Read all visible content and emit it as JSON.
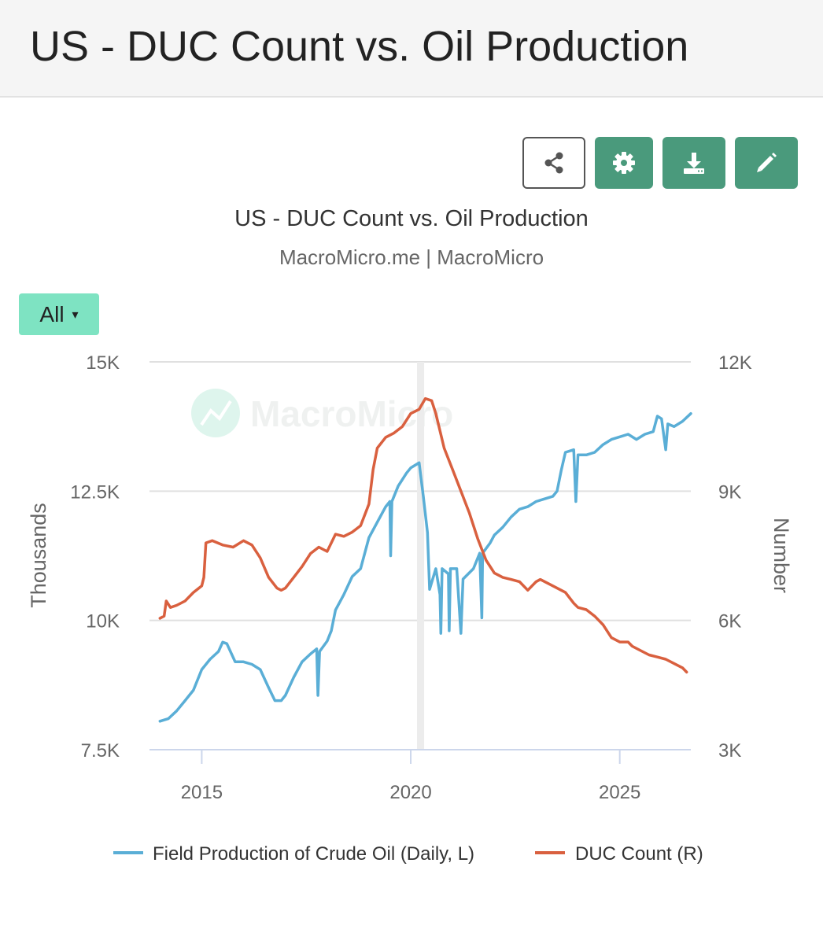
{
  "header": {
    "title": "US - DUC Count vs. Oil Production"
  },
  "toolbar": {
    "share_icon": "share-icon",
    "settings_icon": "gear-icon",
    "download_icon": "download-icon",
    "edit_icon": "pencil-icon"
  },
  "range_selector": {
    "label": "All",
    "caret": "▾"
  },
  "colors": {
    "oil": "#5aaed6",
    "duc": "#d9603f",
    "accent": "#4a9a7c",
    "range": "#7ee3c2"
  },
  "chart_data": {
    "type": "line",
    "title": "US - DUC Count vs. Oil Production",
    "subtitle": "MacroMicro.me | MacroMicro",
    "watermark": "MacroMicro",
    "ylabel_left": "Thousands",
    "ylabel_right": "Number",
    "xlim": [
      2013.75,
      2026.7
    ],
    "ylim_left": [
      7500,
      15000
    ],
    "ylim_right": [
      3000,
      12000
    ],
    "y_ticks_left": [
      {
        "value": 7500,
        "label": "7.5K"
      },
      {
        "value": 10000,
        "label": "10K"
      },
      {
        "value": 12500,
        "label": "12.5K"
      },
      {
        "value": 15000,
        "label": "15K"
      }
    ],
    "y_ticks_right": [
      {
        "value": 3000,
        "label": "3K"
      },
      {
        "value": 6000,
        "label": "6K"
      },
      {
        "value": 9000,
        "label": "9K"
      },
      {
        "value": 12000,
        "label": "12K"
      }
    ],
    "x_ticks": [
      {
        "value": 2015,
        "label": "2015"
      },
      {
        "value": 2020,
        "label": "2020"
      },
      {
        "value": 2025,
        "label": "2025"
      }
    ],
    "shaded_band": [
      2020.15,
      2020.32
    ],
    "grid": true,
    "legend_position": "bottom",
    "series": [
      {
        "name": "Field Production of Crude Oil (Daily, L)",
        "axis": "left",
        "color": "#5aaed6",
        "points": [
          [
            2014.0,
            8050
          ],
          [
            2014.2,
            8100
          ],
          [
            2014.4,
            8250
          ],
          [
            2014.6,
            8450
          ],
          [
            2014.8,
            8650
          ],
          [
            2015.0,
            9050
          ],
          [
            2015.2,
            9250
          ],
          [
            2015.4,
            9400
          ],
          [
            2015.5,
            9580
          ],
          [
            2015.6,
            9550
          ],
          [
            2015.8,
            9200
          ],
          [
            2016.0,
            9200
          ],
          [
            2016.2,
            9150
          ],
          [
            2016.4,
            9050
          ],
          [
            2016.6,
            8700
          ],
          [
            2016.75,
            8450
          ],
          [
            2016.9,
            8450
          ],
          [
            2017.0,
            8550
          ],
          [
            2017.2,
            8900
          ],
          [
            2017.4,
            9200
          ],
          [
            2017.6,
            9350
          ],
          [
            2017.75,
            9450
          ],
          [
            2017.78,
            8550
          ],
          [
            2017.82,
            9400
          ],
          [
            2018.0,
            9600
          ],
          [
            2018.1,
            9800
          ],
          [
            2018.2,
            10200
          ],
          [
            2018.4,
            10500
          ],
          [
            2018.6,
            10850
          ],
          [
            2018.8,
            11000
          ],
          [
            2019.0,
            11600
          ],
          [
            2019.2,
            11900
          ],
          [
            2019.4,
            12200
          ],
          [
            2019.5,
            12300
          ],
          [
            2019.52,
            11250
          ],
          [
            2019.55,
            12300
          ],
          [
            2019.7,
            12600
          ],
          [
            2019.9,
            12850
          ],
          [
            2020.0,
            12950
          ],
          [
            2020.2,
            13050
          ],
          [
            2020.3,
            12400
          ],
          [
            2020.4,
            11700
          ],
          [
            2020.45,
            10600
          ],
          [
            2020.6,
            11000
          ],
          [
            2020.7,
            10500
          ],
          [
            2020.72,
            9750
          ],
          [
            2020.75,
            11000
          ],
          [
            2020.9,
            10900
          ],
          [
            2020.92,
            9800
          ],
          [
            2020.95,
            11000
          ],
          [
            2021.1,
            11000
          ],
          [
            2021.2,
            9750
          ],
          [
            2021.25,
            10800
          ],
          [
            2021.5,
            11000
          ],
          [
            2021.65,
            11300
          ],
          [
            2021.7,
            10050
          ],
          [
            2021.72,
            11300
          ],
          [
            2021.9,
            11500
          ],
          [
            2022.0,
            11650
          ],
          [
            2022.2,
            11800
          ],
          [
            2022.4,
            12000
          ],
          [
            2022.6,
            12150
          ],
          [
            2022.8,
            12200
          ],
          [
            2023.0,
            12300
          ],
          [
            2023.2,
            12350
          ],
          [
            2023.4,
            12400
          ],
          [
            2023.5,
            12500
          ],
          [
            2023.6,
            12900
          ],
          [
            2023.7,
            13250
          ],
          [
            2023.9,
            13300
          ],
          [
            2023.95,
            12300
          ],
          [
            2024.0,
            13200
          ],
          [
            2024.2,
            13200
          ],
          [
            2024.4,
            13250
          ],
          [
            2024.6,
            13400
          ],
          [
            2024.8,
            13500
          ],
          [
            2025.0,
            13550
          ],
          [
            2025.2,
            13600
          ],
          [
            2025.4,
            13500
          ],
          [
            2025.6,
            13600
          ],
          [
            2025.8,
            13650
          ],
          [
            2025.9,
            13950
          ],
          [
            2026.0,
            13900
          ],
          [
            2026.1,
            13300
          ],
          [
            2026.15,
            13800
          ],
          [
            2026.3,
            13750
          ],
          [
            2026.5,
            13850
          ],
          [
            2026.7,
            14000
          ]
        ]
      },
      {
        "name": "DUC Count (R)",
        "axis": "right",
        "color": "#d9603f",
        "points": [
          [
            2014.0,
            6050
          ],
          [
            2014.1,
            6100
          ],
          [
            2014.15,
            6450
          ],
          [
            2014.25,
            6300
          ],
          [
            2014.4,
            6350
          ],
          [
            2014.6,
            6450
          ],
          [
            2014.8,
            6650
          ],
          [
            2015.0,
            6800
          ],
          [
            2015.05,
            7000
          ],
          [
            2015.1,
            7800
          ],
          [
            2015.25,
            7850
          ],
          [
            2015.5,
            7750
          ],
          [
            2015.75,
            7700
          ],
          [
            2016.0,
            7850
          ],
          [
            2016.2,
            7750
          ],
          [
            2016.4,
            7450
          ],
          [
            2016.6,
            7000
          ],
          [
            2016.8,
            6750
          ],
          [
            2016.9,
            6700
          ],
          [
            2017.0,
            6750
          ],
          [
            2017.2,
            7000
          ],
          [
            2017.4,
            7250
          ],
          [
            2017.6,
            7550
          ],
          [
            2017.8,
            7700
          ],
          [
            2018.0,
            7600
          ],
          [
            2018.2,
            8000
          ],
          [
            2018.4,
            7950
          ],
          [
            2018.6,
            8050
          ],
          [
            2018.8,
            8200
          ],
          [
            2019.0,
            8700
          ],
          [
            2019.1,
            9500
          ],
          [
            2019.2,
            10000
          ],
          [
            2019.4,
            10250
          ],
          [
            2019.6,
            10350
          ],
          [
            2019.8,
            10500
          ],
          [
            2020.0,
            10800
          ],
          [
            2020.2,
            10900
          ],
          [
            2020.35,
            11150
          ],
          [
            2020.5,
            11100
          ],
          [
            2020.6,
            10800
          ],
          [
            2020.8,
            10000
          ],
          [
            2021.0,
            9500
          ],
          [
            2021.2,
            9000
          ],
          [
            2021.4,
            8500
          ],
          [
            2021.6,
            7900
          ],
          [
            2021.8,
            7400
          ],
          [
            2022.0,
            7100
          ],
          [
            2022.2,
            7000
          ],
          [
            2022.4,
            6950
          ],
          [
            2022.6,
            6900
          ],
          [
            2022.8,
            6700
          ],
          [
            2022.9,
            6800
          ],
          [
            2023.0,
            6900
          ],
          [
            2023.1,
            6950
          ],
          [
            2023.3,
            6850
          ],
          [
            2023.5,
            6750
          ],
          [
            2023.7,
            6650
          ],
          [
            2023.9,
            6400
          ],
          [
            2024.0,
            6300
          ],
          [
            2024.2,
            6250
          ],
          [
            2024.4,
            6100
          ],
          [
            2024.6,
            5900
          ],
          [
            2024.8,
            5600
          ],
          [
            2025.0,
            5500
          ],
          [
            2025.2,
            5500
          ],
          [
            2025.3,
            5400
          ],
          [
            2025.5,
            5300
          ],
          [
            2025.7,
            5200
          ],
          [
            2025.9,
            5150
          ],
          [
            2026.1,
            5100
          ],
          [
            2026.3,
            5000
          ],
          [
            2026.5,
            4900
          ],
          [
            2026.6,
            4800
          ]
        ]
      }
    ]
  }
}
